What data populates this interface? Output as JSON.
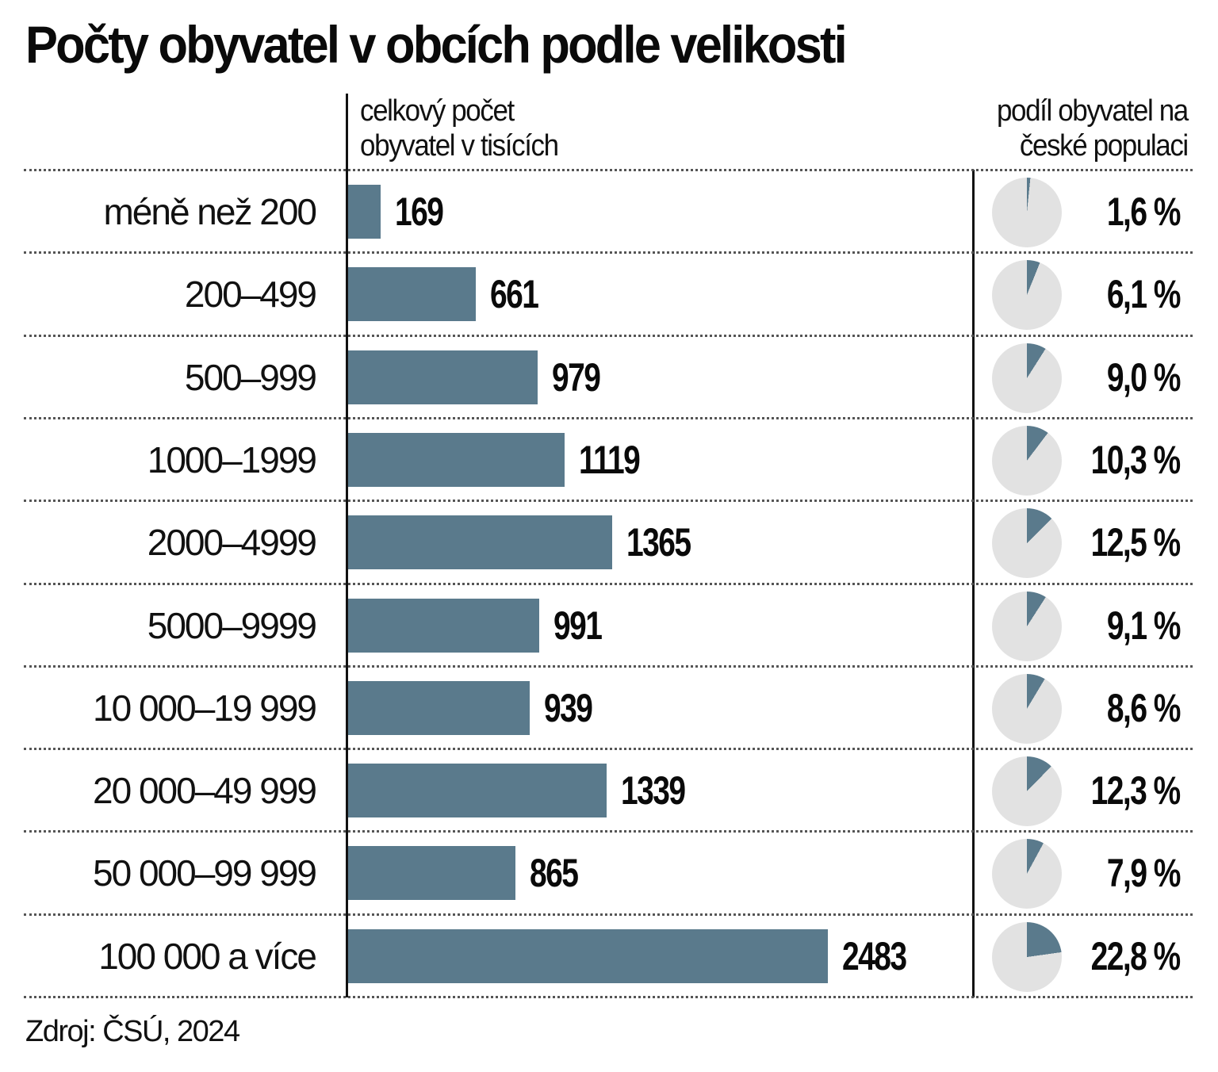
{
  "title": "Počty obyvatel v obcích podle velikosti",
  "headers": {
    "left_line1": "celkový počet",
    "left_line2": "obyvatel v tisících",
    "right_line1": "podíl obyvatel na",
    "right_line2": "české populaci"
  },
  "colors": {
    "bar": "#5a7a8c",
    "pie_bg": "#e2e2e2",
    "pie_fill": "#5a7a8c"
  },
  "rows": [
    {
      "category": "méně než 200",
      "value": "169",
      "share": "1,6 %"
    },
    {
      "category": "200–499",
      "value": "661",
      "share": "6,1 %"
    },
    {
      "category": "500–999",
      "value": "979",
      "share": "9,0 %"
    },
    {
      "category": "1000–1999",
      "value": "1119",
      "share": "10,3 %"
    },
    {
      "category": "2000–4999",
      "value": "1365",
      "share": "12,5 %"
    },
    {
      "category": "5000–9999",
      "value": "991",
      "share": "9,1 %"
    },
    {
      "category": "10 000–19 999",
      "value": "939",
      "share": "8,6 %"
    },
    {
      "category": "20 000–49 999",
      "value": "1339",
      "share": "12,3 %"
    },
    {
      "category": "50 000–99 999",
      "value": "865",
      "share": "7,9 %"
    },
    {
      "category": "100 000 a více",
      "value": "2483",
      "share": "22,8 %"
    }
  ],
  "source": "Zdroj: ČSÚ, 2024",
  "chart_data": {
    "type": "bar",
    "orientation": "horizontal",
    "title": "Počty obyvatel v obcích podle velikosti",
    "xlabel": "celkový počet obyvatel v tisících",
    "ylabel": "",
    "categories": [
      "méně než 200",
      "200–499",
      "500–999",
      "1000–1999",
      "2000–4999",
      "5000–9999",
      "10 000–19 999",
      "20 000–49 999",
      "50 000–99 999",
      "100 000 a více"
    ],
    "series": [
      {
        "name": "celkový počet obyvatel v tisících",
        "values": [
          169,
          661,
          979,
          1119,
          1365,
          991,
          939,
          1339,
          865,
          2483
        ]
      },
      {
        "name": "podíl obyvatel na české populaci (%)",
        "type": "pie",
        "values": [
          1.6,
          6.1,
          9.0,
          10.3,
          12.5,
          9.1,
          8.6,
          12.3,
          7.9,
          22.8
        ]
      }
    ],
    "grid": false,
    "legend": "none",
    "source": "Zdroj: ČSÚ, 2024"
  }
}
